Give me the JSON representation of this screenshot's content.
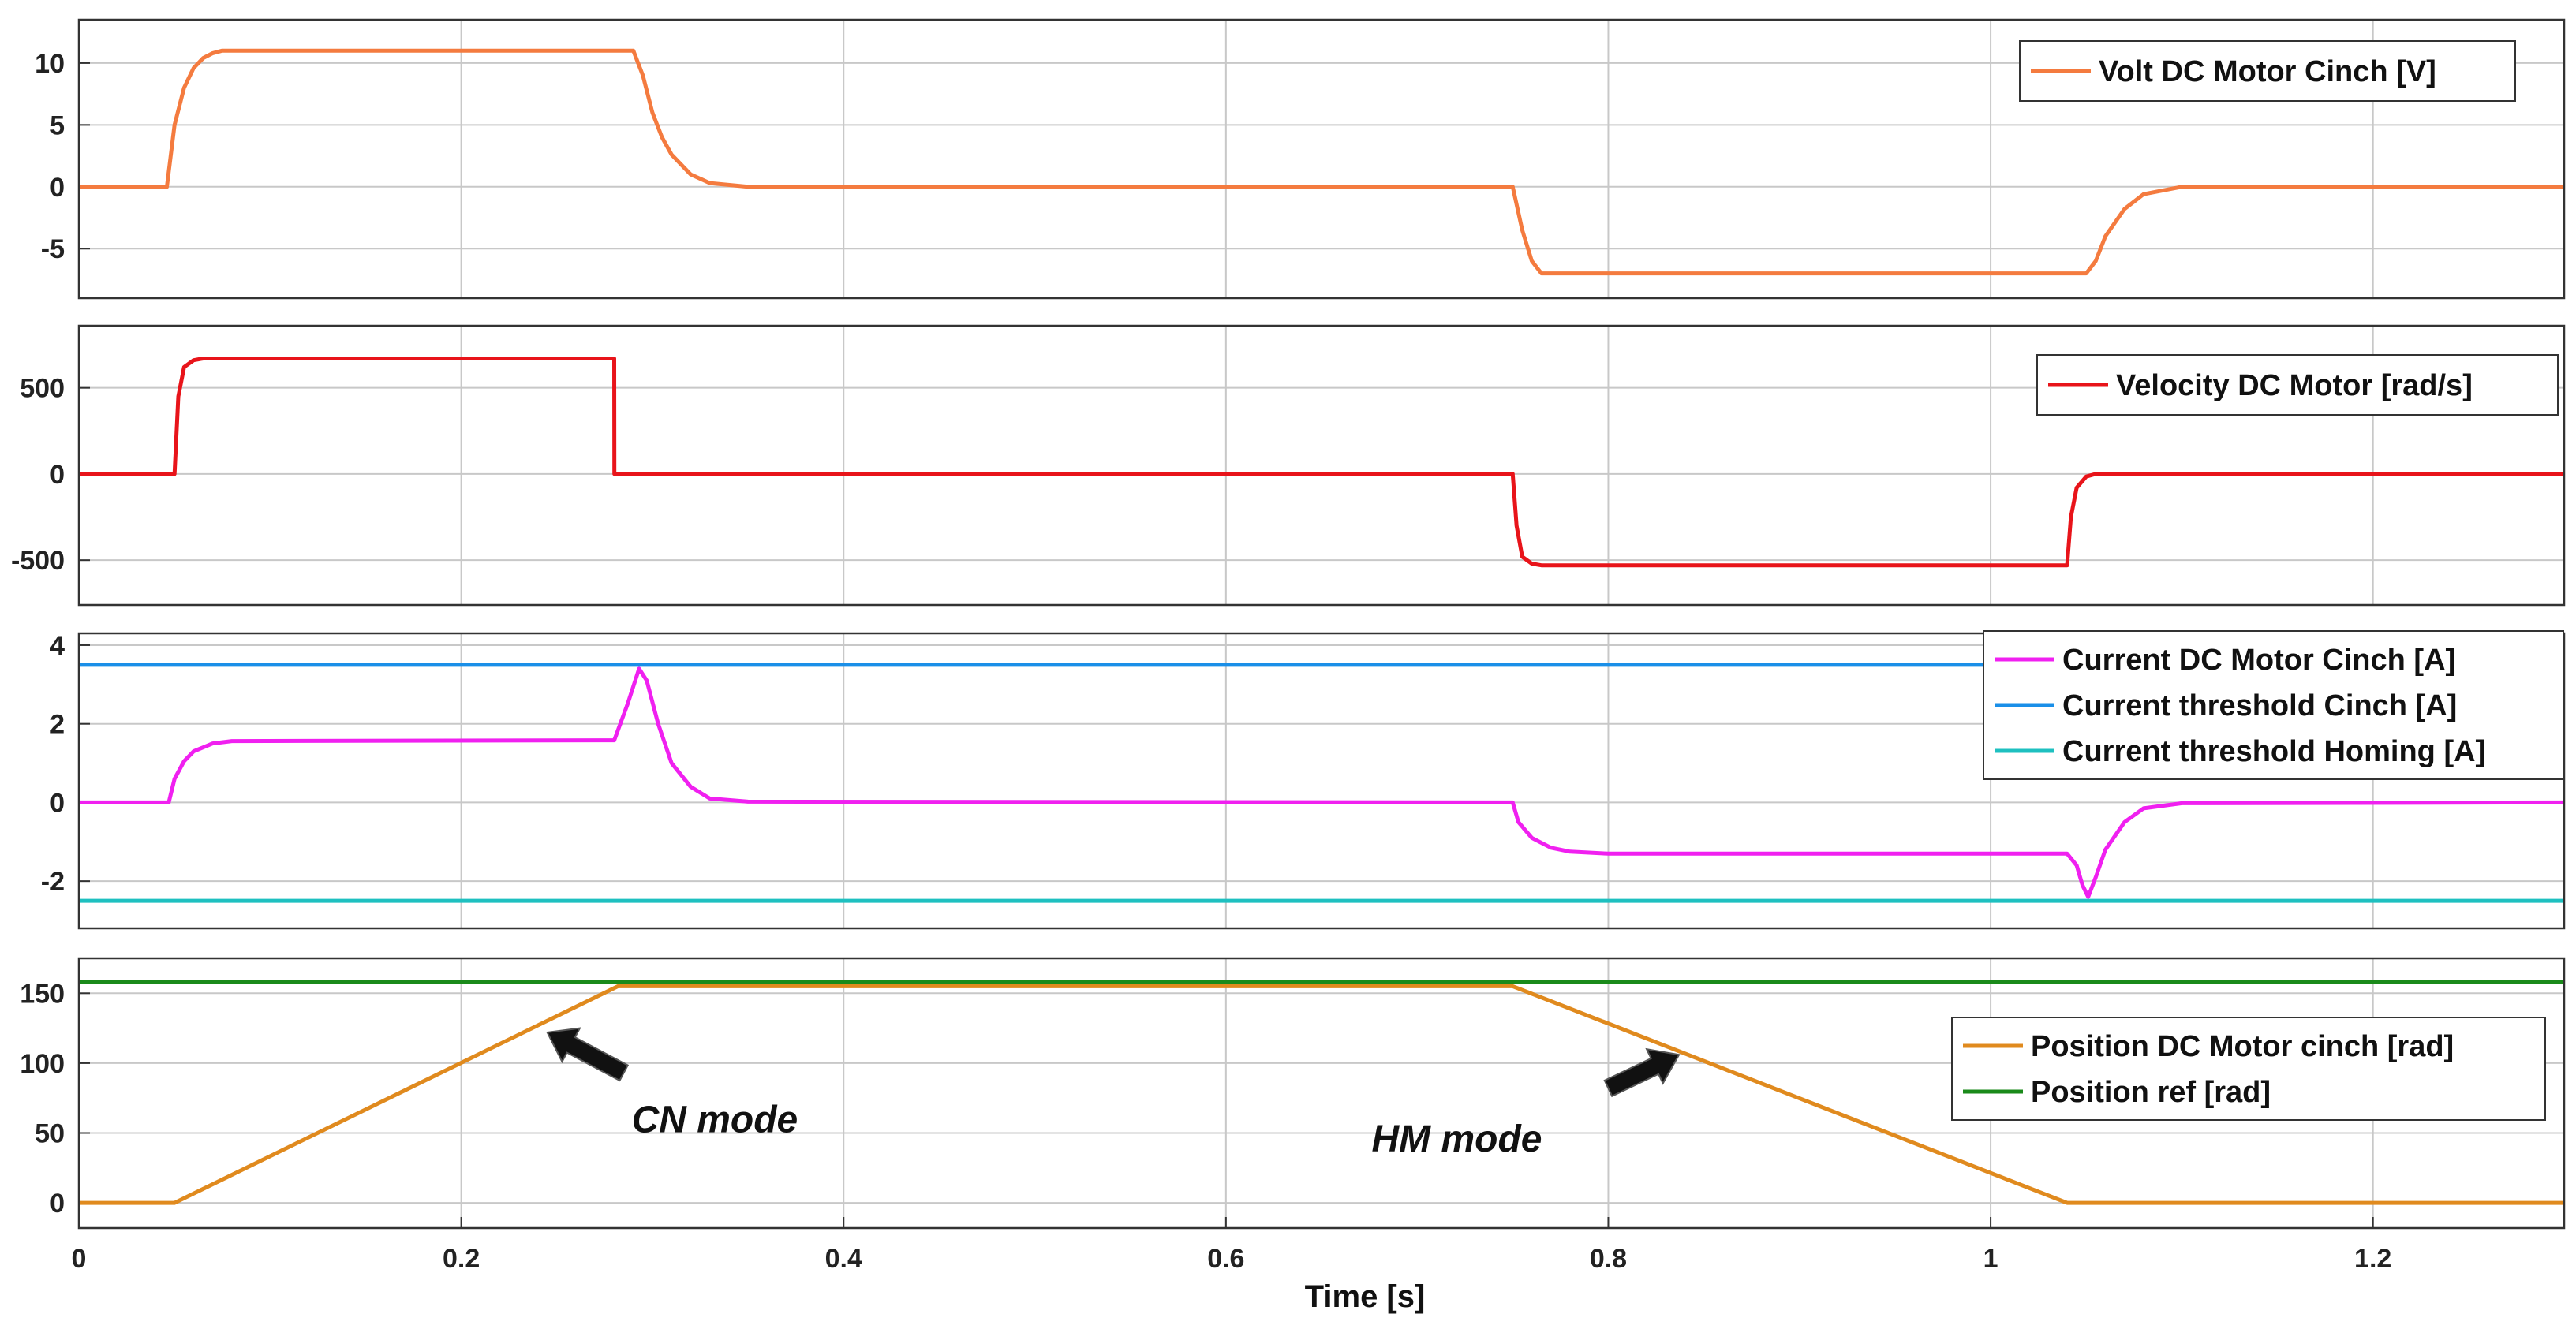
{
  "chart_data": [
    {
      "type": "line",
      "title": "",
      "xlabel": "",
      "ylabel": "",
      "xlim": [
        0,
        1.3
      ],
      "ylim": [
        -9,
        13.5
      ],
      "yticks": [
        -5,
        0,
        5,
        10
      ],
      "ytick_labels": [
        "-5",
        "0",
        "5",
        "10"
      ],
      "grid": true,
      "legend_position": "top-right",
      "series": [
        {
          "name": "Volt DC Motor Cinch [V]",
          "color": "#f47b3f",
          "x": [
            0,
            0.046,
            0.05,
            0.055,
            0.06,
            0.065,
            0.07,
            0.075,
            0.08,
            0.29,
            0.295,
            0.3,
            0.305,
            0.31,
            0.32,
            0.33,
            0.35,
            0.75,
            0.755,
            0.76,
            0.765,
            1.05,
            1.055,
            1.06,
            1.07,
            1.08,
            1.1,
            1.3
          ],
          "y": [
            0,
            0,
            5,
            8,
            9.6,
            10.4,
            10.8,
            11,
            11,
            11,
            9,
            6,
            4,
            2.6,
            1,
            0.3,
            0,
            0,
            -3.5,
            -6,
            -7,
            -7,
            -6,
            -4,
            -1.8,
            -0.6,
            0,
            0
          ]
        }
      ]
    },
    {
      "type": "line",
      "title": "",
      "xlabel": "",
      "ylabel": "",
      "xlim": [
        0,
        1.3
      ],
      "ylim": [
        -760,
        860
      ],
      "yticks": [
        -500,
        0,
        500
      ],
      "ytick_labels": [
        "-500",
        "0",
        "500"
      ],
      "grid": true,
      "legend_position": "top-right",
      "series": [
        {
          "name": "Velocity DC Motor [rad/s]",
          "color": "#e8141a",
          "x": [
            0,
            0.05,
            0.052,
            0.055,
            0.06,
            0.065,
            0.28,
            0.2801,
            0.75,
            0.752,
            0.755,
            0.76,
            0.765,
            1.04,
            1.042,
            1.045,
            1.05,
            1.055,
            1.3
          ],
          "y": [
            0,
            0,
            450,
            620,
            660,
            670,
            670,
            0,
            0,
            -300,
            -480,
            -520,
            -530,
            -530,
            -250,
            -80,
            -15,
            0,
            0
          ]
        }
      ]
    },
    {
      "type": "line",
      "title": "",
      "xlabel": "",
      "ylabel": "",
      "xlim": [
        0,
        1.3
      ],
      "ylim": [
        -3.2,
        4.3
      ],
      "yticks": [
        -2,
        0,
        2,
        4
      ],
      "ytick_labels": [
        "-2",
        "0",
        "2",
        "4"
      ],
      "grid": true,
      "legend_position": "top-right",
      "series": [
        {
          "name": "Current DC Motor Cinch [A]",
          "color": "#f020f0",
          "x": [
            0,
            0.047,
            0.05,
            0.055,
            0.06,
            0.07,
            0.08,
            0.28,
            0.287,
            0.293,
            0.297,
            0.303,
            0.31,
            0.32,
            0.33,
            0.35,
            0.75,
            0.753,
            0.76,
            0.77,
            0.78,
            0.8,
            1.04,
            1.045,
            1.048,
            1.051,
            1.055,
            1.06,
            1.07,
            1.08,
            1.1,
            1.3
          ],
          "y": [
            0,
            0,
            0.6,
            1.05,
            1.3,
            1.5,
            1.56,
            1.58,
            2.5,
            3.4,
            3.1,
            2.0,
            1.0,
            0.4,
            0.1,
            0.02,
            0,
            -0.5,
            -0.9,
            -1.15,
            -1.25,
            -1.3,
            -1.3,
            -1.6,
            -2.1,
            -2.4,
            -1.9,
            -1.2,
            -0.5,
            -0.15,
            -0.02,
            0
          ]
        },
        {
          "name": "Current threshold Cinch [A]",
          "color": "#1a8fe8",
          "x": [
            0,
            1.3
          ],
          "y": [
            3.5,
            3.5
          ]
        },
        {
          "name": "Current threshold Homing [A]",
          "color": "#1ec0c0",
          "x": [
            0,
            1.3
          ],
          "y": [
            -2.5,
            -2.5
          ]
        }
      ]
    },
    {
      "type": "line",
      "title": "",
      "xlabel": "Time [s]",
      "ylabel": "",
      "xlim": [
        0,
        1.3
      ],
      "xticks": [
        0,
        0.2,
        0.4,
        0.6,
        0.8,
        1,
        1.2
      ],
      "xtick_labels": [
        "0",
        "0.2",
        "0.4",
        "0.6",
        "0.8",
        "1",
        "1.2"
      ],
      "ylim": [
        -18,
        175
      ],
      "yticks": [
        0,
        50,
        100,
        150
      ],
      "ytick_labels": [
        "0",
        "50",
        "100",
        "150"
      ],
      "grid": true,
      "legend_position": "right",
      "series": [
        {
          "name": "Position DC Motor cinch [rad]",
          "color": "#e08a1e",
          "x": [
            0,
            0.05,
            0.282,
            0.75,
            1.04,
            1.3
          ],
          "y": [
            0,
            0,
            155,
            155,
            0,
            0
          ]
        },
        {
          "name": "Position ref [rad]",
          "color": "#1a8a1a",
          "x": [
            0,
            1.3
          ],
          "y": [
            158,
            158
          ]
        }
      ],
      "annotations": [
        {
          "text": "CN mode",
          "arrow_from": [
            0.285,
            93
          ],
          "arrow_to": [
            0.245,
            122
          ]
        },
        {
          "text": "HM mode",
          "arrow_from": [
            0.8,
            82
          ],
          "arrow_to": [
            0.837,
            106
          ]
        }
      ]
    }
  ]
}
